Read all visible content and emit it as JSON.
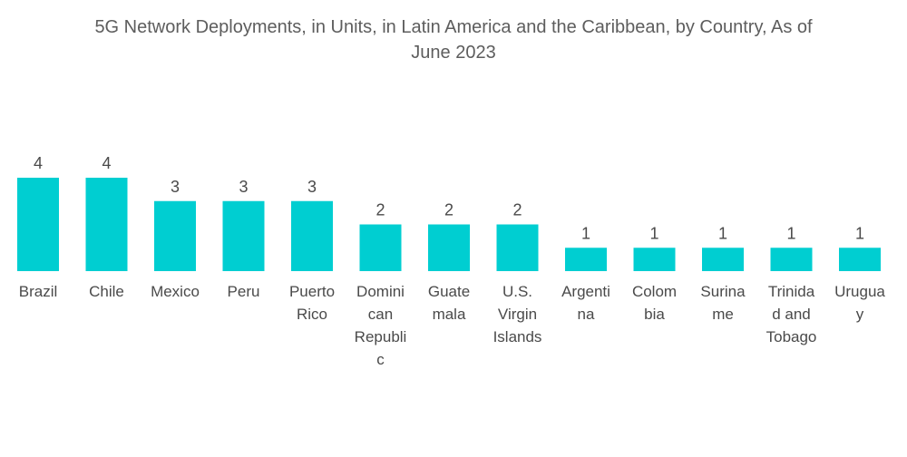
{
  "chart_data": {
    "type": "bar",
    "title": "5G Network Deployments, in Units, in Latin America and the Caribbean, by Country, As of June 2023",
    "title_lines": [
      "5G Network Deployments, in Units, in Latin America and the Caribbean, by Country, As of",
      "June 2023"
    ],
    "xlabel": "",
    "ylabel": "",
    "ylim": [
      0,
      4
    ],
    "grid": false,
    "legend": "none",
    "bar_color": "#00CED1",
    "categories": [
      "Brazil",
      "Chile",
      "Mexico",
      "Peru",
      "Puerto Rico",
      "Dominican Republic",
      "Guatemala",
      "U.S. Virgin Islands",
      "Argentina",
      "Colombia",
      "Suriname",
      "Trinidad and Tobago",
      "Uruguay"
    ],
    "category_label_lines": [
      [
        "Brazil"
      ],
      [
        "Chile"
      ],
      [
        "Mexico"
      ],
      [
        "Peru"
      ],
      [
        "Puerto",
        "Rico"
      ],
      [
        "Domini",
        "can",
        "Republi",
        "c"
      ],
      [
        "Guate",
        "mala"
      ],
      [
        "U.S.",
        "Virgin",
        "Islands"
      ],
      [
        "Argenti",
        "na"
      ],
      [
        "Colom",
        "bia"
      ],
      [
        "Surina",
        "me"
      ],
      [
        "Trinida",
        "d and",
        "Tobago"
      ],
      [
        "Urugua",
        "y"
      ]
    ],
    "values": [
      4,
      4,
      3,
      3,
      3,
      2,
      2,
      2,
      1,
      1,
      1,
      1,
      1
    ],
    "data_labels": [
      "4",
      "4",
      "3",
      "3",
      "3",
      "2",
      "2",
      "2",
      "1",
      "1",
      "1",
      "1",
      "1"
    ]
  }
}
